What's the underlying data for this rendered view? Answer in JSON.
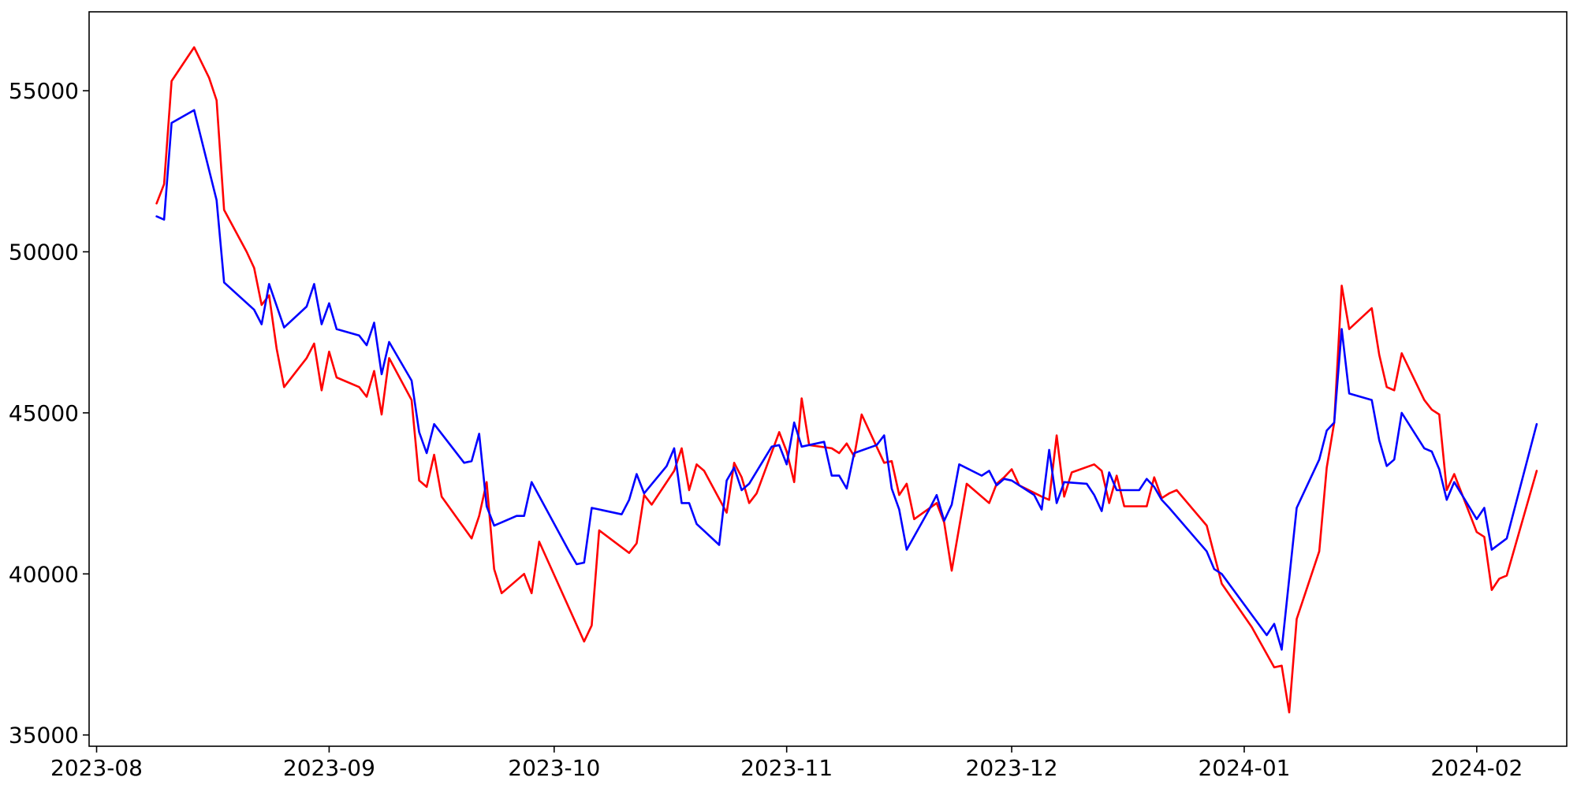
{
  "chart_data": {
    "type": "line",
    "title": "",
    "xlabel": "",
    "ylabel": "",
    "x_axis_type": "date",
    "xlim": [
      "2023-07-31",
      "2024-02-13"
    ],
    "ylim": [
      34650,
      57450
    ],
    "grid": false,
    "legend": "none",
    "x_ticks": [
      "2023-08-01",
      "2023-09-01",
      "2023-10-01",
      "2023-11-01",
      "2023-12-01",
      "2024-01-01",
      "2024-02-01"
    ],
    "x_tick_labels": [
      "2023-08",
      "2023-09",
      "2023-10",
      "2023-11",
      "2023-12",
      "2024-01",
      "2024-02"
    ],
    "y_ticks": [
      35000,
      40000,
      45000,
      50000,
      55000
    ],
    "y_tick_labels": [
      "35000",
      "40000",
      "45000",
      "50000",
      "55000"
    ],
    "series": [
      {
        "color": "#ff0000",
        "points": [
          [
            "2023-08-09",
            51500
          ],
          [
            "2023-08-10",
            52100
          ],
          [
            "2023-08-11",
            55300
          ],
          [
            "2023-08-14",
            56350
          ],
          [
            "2023-08-16",
            55400
          ],
          [
            "2023-08-17",
            54700
          ],
          [
            "2023-08-18",
            51300
          ],
          [
            "2023-08-21",
            50000
          ],
          [
            "2023-08-22",
            49500
          ],
          [
            "2023-08-23",
            48350
          ],
          [
            "2023-08-24",
            48650
          ],
          [
            "2023-08-25",
            47000
          ],
          [
            "2023-08-26",
            45800
          ],
          [
            "2023-08-29",
            46700
          ],
          [
            "2023-08-30",
            47150
          ],
          [
            "2023-08-31",
            45700
          ],
          [
            "2023-09-01",
            46900
          ],
          [
            "2023-09-02",
            46100
          ],
          [
            "2023-09-05",
            45800
          ],
          [
            "2023-09-06",
            45500
          ],
          [
            "2023-09-07",
            46300
          ],
          [
            "2023-09-08",
            44950
          ],
          [
            "2023-09-09",
            46700
          ],
          [
            "2023-09-12",
            45400
          ],
          [
            "2023-09-13",
            42900
          ],
          [
            "2023-09-14",
            42700
          ],
          [
            "2023-09-15",
            43700
          ],
          [
            "2023-09-16",
            42400
          ],
          [
            "2023-09-20",
            41100
          ],
          [
            "2023-09-21",
            41800
          ],
          [
            "2023-09-22",
            42850
          ],
          [
            "2023-09-23",
            40150
          ],
          [
            "2023-09-24",
            39400
          ],
          [
            "2023-09-27",
            40000
          ],
          [
            "2023-09-28",
            39400
          ],
          [
            "2023-09-29",
            41000
          ],
          [
            "2023-10-05",
            37900
          ],
          [
            "2023-10-06",
            38400
          ],
          [
            "2023-10-07",
            41350
          ],
          [
            "2023-10-11",
            40650
          ],
          [
            "2023-10-12",
            40950
          ],
          [
            "2023-10-13",
            42450
          ],
          [
            "2023-10-14",
            42150
          ],
          [
            "2023-10-17",
            43200
          ],
          [
            "2023-10-18",
            43900
          ],
          [
            "2023-10-19",
            42600
          ],
          [
            "2023-10-20",
            43400
          ],
          [
            "2023-10-21",
            43200
          ],
          [
            "2023-10-24",
            41900
          ],
          [
            "2023-10-25",
            43450
          ],
          [
            "2023-10-26",
            43000
          ],
          [
            "2023-10-27",
            42200
          ],
          [
            "2023-10-28",
            42500
          ],
          [
            "2023-10-31",
            44400
          ],
          [
            "2023-11-01",
            43800
          ],
          [
            "2023-11-02",
            42850
          ],
          [
            "2023-11-03",
            45450
          ],
          [
            "2023-11-04",
            44000
          ],
          [
            "2023-11-07",
            43900
          ],
          [
            "2023-11-08",
            43750
          ],
          [
            "2023-11-09",
            44050
          ],
          [
            "2023-11-10",
            43650
          ],
          [
            "2023-11-11",
            44950
          ],
          [
            "2023-11-14",
            43450
          ],
          [
            "2023-11-15",
            43500
          ],
          [
            "2023-11-16",
            42450
          ],
          [
            "2023-11-17",
            42800
          ],
          [
            "2023-11-18",
            41700
          ],
          [
            "2023-11-21",
            42200
          ],
          [
            "2023-11-22",
            41600
          ],
          [
            "2023-11-23",
            40100
          ],
          [
            "2023-11-25",
            42800
          ],
          [
            "2023-11-28",
            42200
          ],
          [
            "2023-11-29",
            42800
          ],
          [
            "2023-11-30",
            43000
          ],
          [
            "2023-12-01",
            43250
          ],
          [
            "2023-12-02",
            42750
          ],
          [
            "2023-12-05",
            42400
          ],
          [
            "2023-12-06",
            42300
          ],
          [
            "2023-12-07",
            44300
          ],
          [
            "2023-12-08",
            42400
          ],
          [
            "2023-12-09",
            43150
          ],
          [
            "2023-12-12",
            43400
          ],
          [
            "2023-12-13",
            43200
          ],
          [
            "2023-12-14",
            42200
          ],
          [
            "2023-12-15",
            43050
          ],
          [
            "2023-12-16",
            42100
          ],
          [
            "2023-12-19",
            42100
          ],
          [
            "2023-12-20",
            43000
          ],
          [
            "2023-12-21",
            42350
          ],
          [
            "2023-12-22",
            42500
          ],
          [
            "2023-12-23",
            42600
          ],
          [
            "2023-12-27",
            41500
          ],
          [
            "2023-12-28",
            40600
          ],
          [
            "2023-12-29",
            39700
          ],
          [
            "2024-01-02",
            38350
          ],
          [
            "2024-01-05",
            37100
          ],
          [
            "2024-01-06",
            37150
          ],
          [
            "2024-01-07",
            35700
          ],
          [
            "2024-01-08",
            38600
          ],
          [
            "2024-01-11",
            40700
          ],
          [
            "2024-01-12",
            43300
          ],
          [
            "2024-01-13",
            44700
          ],
          [
            "2024-01-14",
            48950
          ],
          [
            "2024-01-15",
            47600
          ],
          [
            "2024-01-18",
            48250
          ],
          [
            "2024-01-19",
            46800
          ],
          [
            "2024-01-20",
            45800
          ],
          [
            "2024-01-21",
            45700
          ],
          [
            "2024-01-22",
            46850
          ],
          [
            "2024-01-25",
            45400
          ],
          [
            "2024-01-26",
            45100
          ],
          [
            "2024-01-27",
            44950
          ],
          [
            "2024-01-28",
            42600
          ],
          [
            "2024-01-29",
            43100
          ],
          [
            "2024-02-01",
            41300
          ],
          [
            "2024-02-02",
            41150
          ],
          [
            "2024-02-03",
            39500
          ],
          [
            "2024-02-04",
            39850
          ],
          [
            "2024-02-05",
            39950
          ],
          [
            "2024-02-09",
            43200
          ]
        ]
      },
      {
        "color": "#0000ff",
        "points": [
          [
            "2023-08-09",
            51100
          ],
          [
            "2023-08-10",
            51000
          ],
          [
            "2023-08-11",
            54000
          ],
          [
            "2023-08-14",
            54400
          ],
          [
            "2023-08-17",
            51600
          ],
          [
            "2023-08-18",
            49050
          ],
          [
            "2023-08-22",
            48200
          ],
          [
            "2023-08-23",
            47750
          ],
          [
            "2023-08-24",
            49000
          ],
          [
            "2023-08-26",
            47650
          ],
          [
            "2023-08-29",
            48300
          ],
          [
            "2023-08-30",
            49000
          ],
          [
            "2023-08-31",
            47750
          ],
          [
            "2023-09-01",
            48400
          ],
          [
            "2023-09-02",
            47600
          ],
          [
            "2023-09-05",
            47400
          ],
          [
            "2023-09-06",
            47100
          ],
          [
            "2023-09-07",
            47800
          ],
          [
            "2023-09-08",
            46200
          ],
          [
            "2023-09-09",
            47200
          ],
          [
            "2023-09-12",
            46000
          ],
          [
            "2023-09-13",
            44400
          ],
          [
            "2023-09-14",
            43750
          ],
          [
            "2023-09-15",
            44650
          ],
          [
            "2023-09-19",
            43450
          ],
          [
            "2023-09-20",
            43500
          ],
          [
            "2023-09-21",
            44350
          ],
          [
            "2023-09-22",
            42100
          ],
          [
            "2023-09-23",
            41500
          ],
          [
            "2023-09-26",
            41800
          ],
          [
            "2023-09-27",
            41800
          ],
          [
            "2023-09-28",
            42850
          ],
          [
            "2023-10-03",
            40700
          ],
          [
            "2023-10-04",
            40300
          ],
          [
            "2023-10-05",
            40350
          ],
          [
            "2023-10-06",
            42050
          ],
          [
            "2023-10-10",
            41850
          ],
          [
            "2023-10-11",
            42300
          ],
          [
            "2023-10-12",
            43100
          ],
          [
            "2023-10-13",
            42500
          ],
          [
            "2023-10-16",
            43350
          ],
          [
            "2023-10-17",
            43900
          ],
          [
            "2023-10-18",
            42200
          ],
          [
            "2023-10-19",
            42200
          ],
          [
            "2023-10-20",
            41550
          ],
          [
            "2023-10-23",
            40900
          ],
          [
            "2023-10-24",
            42900
          ],
          [
            "2023-10-25",
            43300
          ],
          [
            "2023-10-26",
            42600
          ],
          [
            "2023-10-27",
            42800
          ],
          [
            "2023-10-30",
            43950
          ],
          [
            "2023-10-31",
            44000
          ],
          [
            "2023-11-01",
            43400
          ],
          [
            "2023-11-02",
            44700
          ],
          [
            "2023-11-03",
            43950
          ],
          [
            "2023-11-06",
            44100
          ],
          [
            "2023-11-07",
            43050
          ],
          [
            "2023-11-08",
            43050
          ],
          [
            "2023-11-09",
            42650
          ],
          [
            "2023-11-10",
            43750
          ],
          [
            "2023-11-13",
            44000
          ],
          [
            "2023-11-14",
            44300
          ],
          [
            "2023-11-15",
            42650
          ],
          [
            "2023-11-16",
            42000
          ],
          [
            "2023-11-17",
            40750
          ],
          [
            "2023-11-20",
            42000
          ],
          [
            "2023-11-21",
            42450
          ],
          [
            "2023-11-22",
            41650
          ],
          [
            "2023-11-23",
            42150
          ],
          [
            "2023-11-24",
            43400
          ],
          [
            "2023-11-27",
            43050
          ],
          [
            "2023-11-28",
            43200
          ],
          [
            "2023-11-29",
            42750
          ],
          [
            "2023-11-30",
            42950
          ],
          [
            "2023-12-01",
            42900
          ],
          [
            "2023-12-04",
            42450
          ],
          [
            "2023-12-05",
            42000
          ],
          [
            "2023-12-06",
            43850
          ],
          [
            "2023-12-07",
            42200
          ],
          [
            "2023-12-08",
            42850
          ],
          [
            "2023-12-11",
            42800
          ],
          [
            "2023-12-12",
            42450
          ],
          [
            "2023-12-13",
            41950
          ],
          [
            "2023-12-14",
            43150
          ],
          [
            "2023-12-15",
            42600
          ],
          [
            "2023-12-18",
            42600
          ],
          [
            "2023-12-19",
            42950
          ],
          [
            "2023-12-20",
            42700
          ],
          [
            "2023-12-21",
            42300
          ],
          [
            "2023-12-22",
            42050
          ],
          [
            "2023-12-27",
            40700
          ],
          [
            "2023-12-28",
            40150
          ],
          [
            "2023-12-29",
            40000
          ],
          [
            "2024-01-04",
            38100
          ],
          [
            "2024-01-05",
            38450
          ],
          [
            "2024-01-06",
            37650
          ],
          [
            "2024-01-08",
            42050
          ],
          [
            "2024-01-11",
            43550
          ],
          [
            "2024-01-12",
            44450
          ],
          [
            "2024-01-13",
            44700
          ],
          [
            "2024-01-14",
            47600
          ],
          [
            "2024-01-15",
            45600
          ],
          [
            "2024-01-18",
            45400
          ],
          [
            "2024-01-19",
            44150
          ],
          [
            "2024-01-20",
            43350
          ],
          [
            "2024-01-21",
            43550
          ],
          [
            "2024-01-22",
            45000
          ],
          [
            "2024-01-25",
            43900
          ],
          [
            "2024-01-26",
            43800
          ],
          [
            "2024-01-27",
            43250
          ],
          [
            "2024-01-28",
            42300
          ],
          [
            "2024-01-29",
            42850
          ],
          [
            "2024-02-01",
            41700
          ],
          [
            "2024-02-02",
            42050
          ],
          [
            "2024-02-03",
            40750
          ],
          [
            "2024-02-05",
            41100
          ],
          [
            "2024-02-09",
            44650
          ]
        ]
      }
    ]
  }
}
